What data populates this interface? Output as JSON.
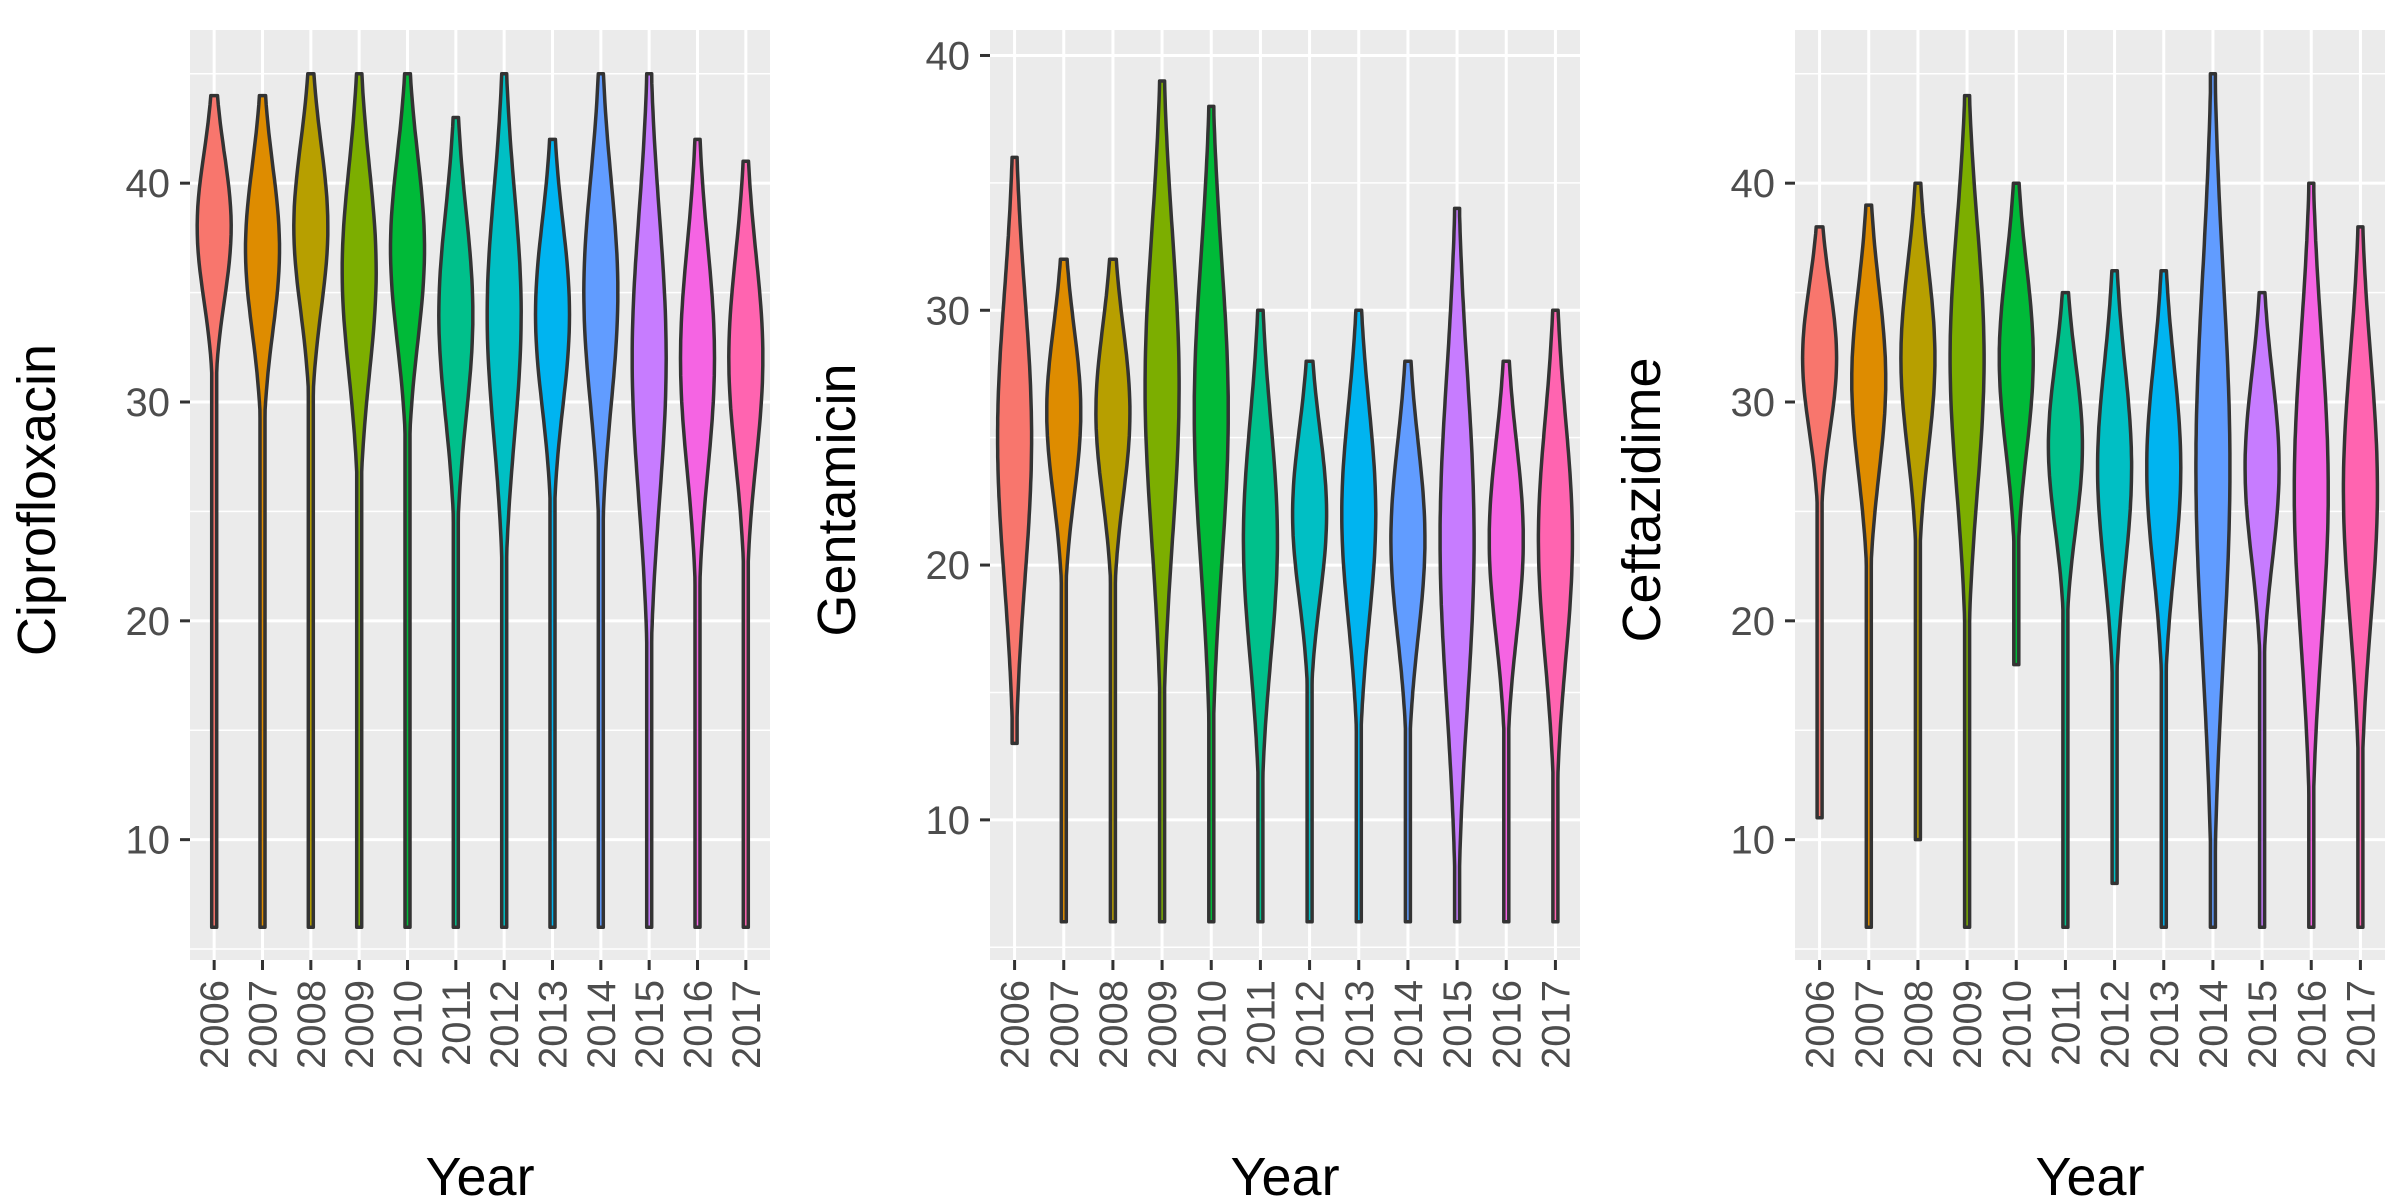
{
  "chart_data": [
    {
      "type": "violin",
      "xlabel": "Year",
      "ylabel": "Ciprofloxacin",
      "categories": [
        "2006",
        "2007",
        "2008",
        "2009",
        "2010",
        "2011",
        "2012",
        "2013",
        "2014",
        "2015",
        "2016",
        "2017"
      ],
      "ylim": [
        4.5,
        47
      ],
      "yticks": [
        10,
        20,
        30,
        40
      ],
      "grid": true,
      "series": [
        {
          "category": "2006",
          "min": 6,
          "max": 44,
          "median": 38
        },
        {
          "category": "2007",
          "min": 6,
          "max": 44,
          "median": 37
        },
        {
          "category": "2008",
          "min": 6,
          "max": 45,
          "median": 38
        },
        {
          "category": "2009",
          "min": 6,
          "max": 45,
          "median": 36
        },
        {
          "category": "2010",
          "min": 6,
          "max": 45,
          "median": 37
        },
        {
          "category": "2011",
          "min": 6,
          "max": 43,
          "median": 34
        },
        {
          "category": "2012",
          "min": 6,
          "max": 45,
          "median": 34
        },
        {
          "category": "2013",
          "min": 6,
          "max": 42,
          "median": 34
        },
        {
          "category": "2014",
          "min": 6,
          "max": 45,
          "median": 35
        },
        {
          "category": "2015",
          "min": 6,
          "max": 45,
          "median": 32
        },
        {
          "category": "2016",
          "min": 6,
          "max": 42,
          "median": 32
        },
        {
          "category": "2017",
          "min": 6,
          "max": 41,
          "median": 32
        }
      ]
    },
    {
      "type": "violin",
      "xlabel": "Year",
      "ylabel": "Gentamicin",
      "categories": [
        "2006",
        "2007",
        "2008",
        "2009",
        "2010",
        "2011",
        "2012",
        "2013",
        "2014",
        "2015",
        "2016",
        "2017"
      ],
      "ylim": [
        4.5,
        41
      ],
      "yticks": [
        10,
        20,
        30,
        40
      ],
      "grid": true,
      "series": [
        {
          "category": "2006",
          "min": 13,
          "max": 36,
          "median": 25
        },
        {
          "category": "2007",
          "min": 6,
          "max": 32,
          "median": 26
        },
        {
          "category": "2008",
          "min": 6,
          "max": 32,
          "median": 26
        },
        {
          "category": "2009",
          "min": 6,
          "max": 39,
          "median": 27
        },
        {
          "category": "2010",
          "min": 6,
          "max": 38,
          "median": 26
        },
        {
          "category": "2011",
          "min": 6,
          "max": 30,
          "median": 21
        },
        {
          "category": "2012",
          "min": 6,
          "max": 28,
          "median": 22
        },
        {
          "category": "2013",
          "min": 6,
          "max": 30,
          "median": 22
        },
        {
          "category": "2014",
          "min": 6,
          "max": 28,
          "median": 21
        },
        {
          "category": "2015",
          "min": 6,
          "max": 34,
          "median": 21
        },
        {
          "category": "2016",
          "min": 6,
          "max": 28,
          "median": 21
        },
        {
          "category": "2017",
          "min": 6,
          "max": 30,
          "median": 21
        }
      ]
    },
    {
      "type": "violin",
      "xlabel": "Year",
      "ylabel": "Ceftazidime",
      "categories": [
        "2006",
        "2007",
        "2008",
        "2009",
        "2010",
        "2011",
        "2012",
        "2013",
        "2014",
        "2015",
        "2016",
        "2017"
      ],
      "ylim": [
        4.5,
        47
      ],
      "yticks": [
        10,
        20,
        30,
        40
      ],
      "grid": true,
      "series": [
        {
          "category": "2006",
          "min": 11,
          "max": 38,
          "median": 32
        },
        {
          "category": "2007",
          "min": 6,
          "max": 39,
          "median": 31
        },
        {
          "category": "2008",
          "min": 10,
          "max": 40,
          "median": 32
        },
        {
          "category": "2009",
          "min": 6,
          "max": 44,
          "median": 32
        },
        {
          "category": "2010",
          "min": 18,
          "max": 40,
          "median": 32
        },
        {
          "category": "2011",
          "min": 6,
          "max": 35,
          "median": 28
        },
        {
          "category": "2012",
          "min": 8,
          "max": 36,
          "median": 27
        },
        {
          "category": "2013",
          "min": 6,
          "max": 36,
          "median": 27
        },
        {
          "category": "2014",
          "min": 6,
          "max": 45,
          "median": 27
        },
        {
          "category": "2015",
          "min": 6,
          "max": 35,
          "median": 27
        },
        {
          "category": "2016",
          "min": 6,
          "max": 40,
          "median": 26
        },
        {
          "category": "2017",
          "min": 6,
          "max": 38,
          "median": 26
        }
      ]
    }
  ],
  "colors": [
    "#F8766D",
    "#DE8C00",
    "#B79F00",
    "#7CAE00",
    "#00BA38",
    "#00C08B",
    "#00BFC4",
    "#00B4F0",
    "#619CFF",
    "#C77CFF",
    "#F564E3",
    "#FF64B0"
  ],
  "style": {
    "panel_background": "#EBEBEB",
    "grid_color": "#FFFFFF",
    "outline_color": "#333333"
  }
}
